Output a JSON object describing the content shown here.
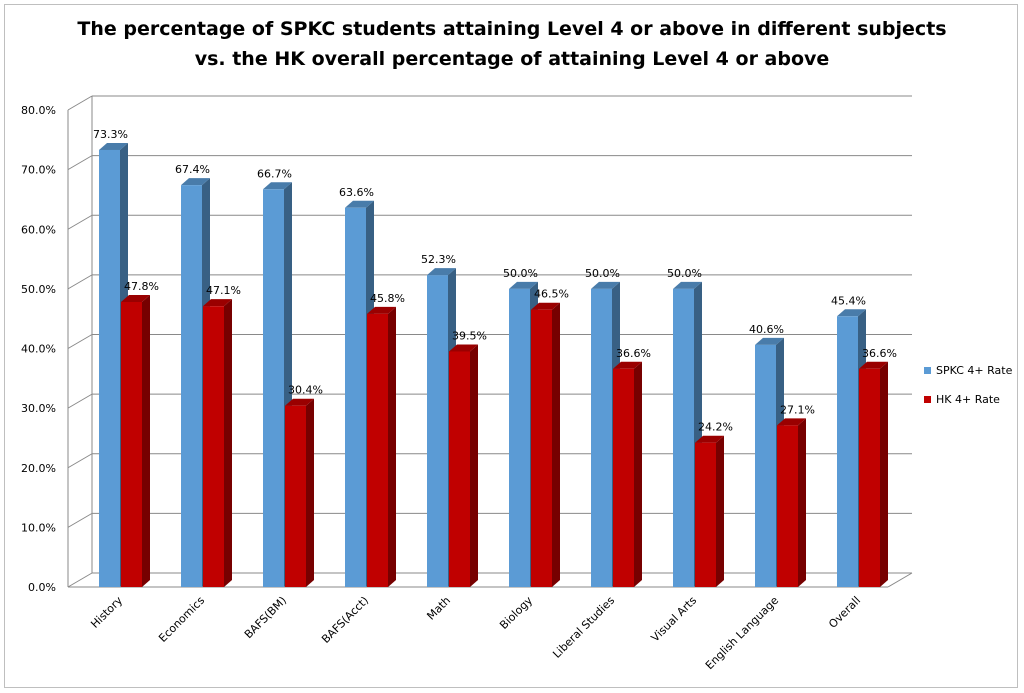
{
  "chart_data": {
    "type": "bar",
    "title_lines": [
      "The percentage of SPKC students attaining Level 4 or above in different subjects",
      "vs. the HK overall percentage of attaining Level 4 or above"
    ],
    "categories": [
      "History",
      "Economics",
      "BAFS(BM)",
      "BAFS(Acct)",
      "Math",
      "Biology",
      "Liberal Studies",
      "Visual Arts",
      "English Language",
      "Overall"
    ],
    "series": [
      {
        "name": "SPKC 4+ Rate",
        "color": "#5b9bd5",
        "values": [
          73.3,
          67.4,
          66.7,
          63.6,
          52.3,
          50.0,
          50.0,
          50.0,
          40.6,
          45.4
        ],
        "labels": [
          "73.3%",
          "67.4%",
          "66.7%",
          "63.6%",
          "52.3%",
          "50.0%",
          "50.0%",
          "50.0%",
          "40.6%",
          "45.4%"
        ]
      },
      {
        "name": "HK 4+ Rate",
        "color": "#c00000",
        "values": [
          47.8,
          47.1,
          30.4,
          45.8,
          39.5,
          46.5,
          36.6,
          24.2,
          27.1,
          36.6
        ],
        "labels": [
          "47.8%",
          "47.1%",
          "30.4%",
          "45.8%",
          "39.5%",
          "46.5%",
          "36.6%",
          "24.2%",
          "27.1%",
          "36.6%"
        ]
      }
    ],
    "ylim": [
      0,
      80
    ],
    "yticks": [
      "0.0%",
      "10.0%",
      "20.0%",
      "30.0%",
      "40.0%",
      "50.0%",
      "60.0%",
      "70.0%",
      "80.0%"
    ],
    "grid": true,
    "legend_position": "right",
    "style": "3d-clustered-column"
  }
}
